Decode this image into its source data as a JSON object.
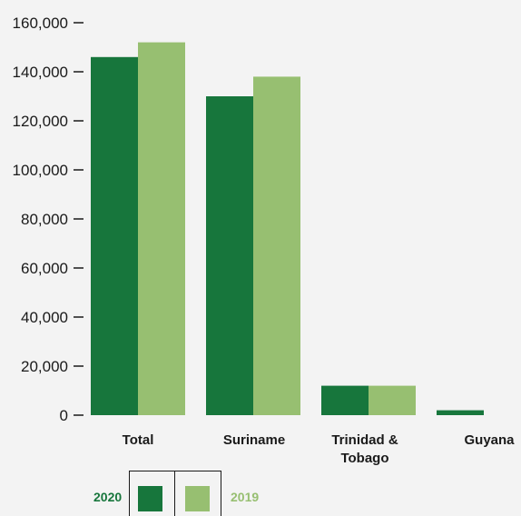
{
  "chart_data": {
    "type": "bar",
    "categories": [
      "Total",
      "Suriname",
      "Trinidad & Tobago",
      "Guyana"
    ],
    "category_lines": [
      [
        "Total"
      ],
      [
        "Suriname"
      ],
      [
        "Trinidad &",
        "Tobago"
      ],
      [
        "Guyana"
      ]
    ],
    "series": [
      {
        "name": "2020",
        "color": "#17763c",
        "values": [
          146000,
          130000,
          12000,
          2000
        ]
      },
      {
        "name": "2019",
        "color": "#97bf71",
        "values": [
          152000,
          138000,
          12000,
          0
        ]
      }
    ],
    "yticks": [
      "0",
      "20,000",
      "40,000",
      "60,000",
      "80,000",
      "100,000",
      "120,000",
      "140,000",
      "160,000"
    ],
    "ylim": [
      0,
      160000
    ],
    "grid": false,
    "legend_position": "bottom-left"
  }
}
